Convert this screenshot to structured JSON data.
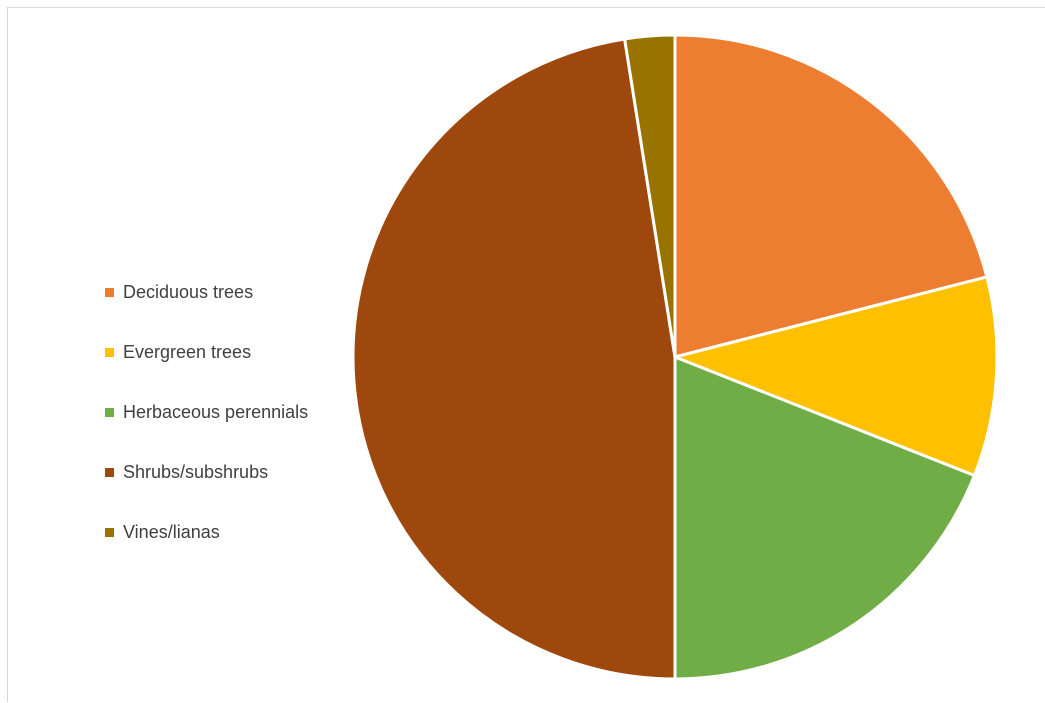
{
  "chart_data": {
    "type": "pie",
    "title": "",
    "legend_position": "left",
    "series": [
      {
        "values": [
          21,
          10,
          19,
          47.5,
          2.5
        ],
        "categories": [
          "Deciduous trees",
          "Evergreen trees",
          "Herbaceous perennials",
          "Shrubs/subshrubs",
          "Vines/lianas"
        ]
      }
    ],
    "categories": [
      "Deciduous trees",
      "Evergreen trees",
      "Herbaceous perennials",
      "Shrubs/subshrubs",
      "Vines/lianas"
    ],
    "values": [
      21,
      10,
      19,
      47.5,
      2.5
    ],
    "colors": [
      "#ED7D31",
      "#FFC000",
      "#70AD47",
      "#9E480E",
      "#997300"
    ]
  }
}
